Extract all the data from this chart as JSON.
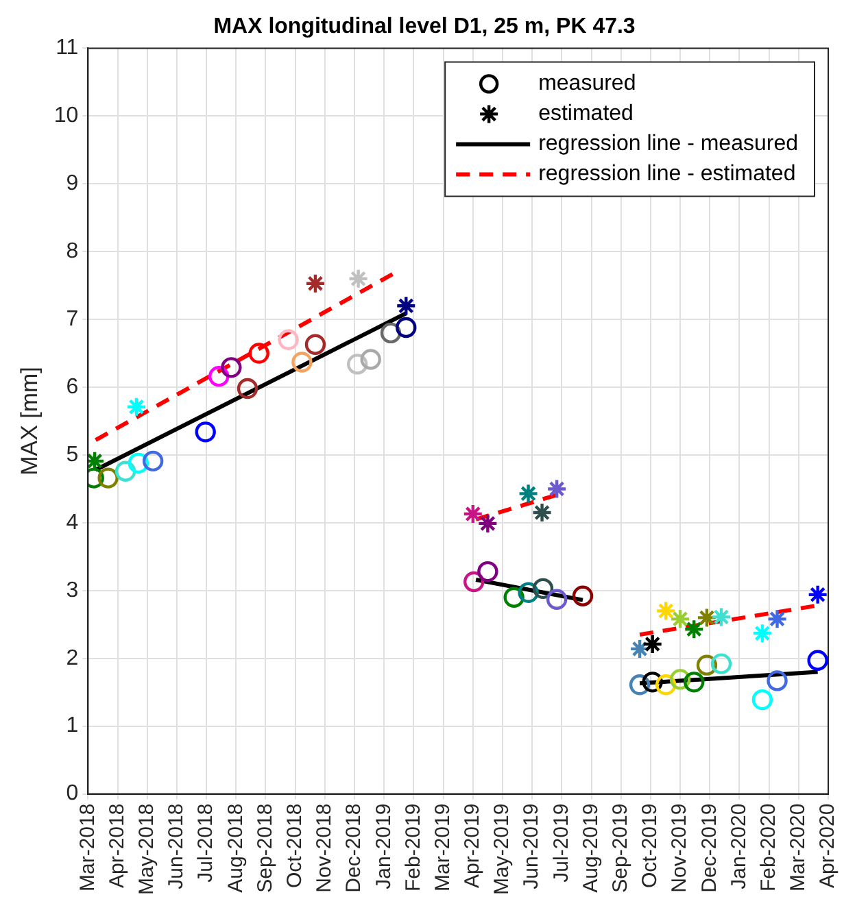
{
  "chart_data": {
    "type": "scatter",
    "title": "MAX longitudinal level D1, 25 m, PK 47.3",
    "ylabel": "MAX [mm]",
    "ylim": [
      0,
      11
    ],
    "yticks": [
      0,
      1,
      2,
      3,
      4,
      5,
      6,
      7,
      8,
      9,
      10,
      11
    ],
    "xlim": [
      "2018-03",
      "2020-04"
    ],
    "xticks": [
      {
        "value": "2018-03",
        "label": "Mar-2018"
      },
      {
        "value": "2018-04",
        "label": "Apr-2018"
      },
      {
        "value": "2018-05",
        "label": "May-2018"
      },
      {
        "value": "2018-06",
        "label": "Jun-2018"
      },
      {
        "value": "2018-07",
        "label": "Jul-2018"
      },
      {
        "value": "2018-08",
        "label": "Aug-2018"
      },
      {
        "value": "2018-09",
        "label": "Sep-2018"
      },
      {
        "value": "2018-10",
        "label": "Oct-2018"
      },
      {
        "value": "2018-11",
        "label": "Nov-2018"
      },
      {
        "value": "2018-12",
        "label": "Dec-2018"
      },
      {
        "value": "2019-01",
        "label": "Jan-2019"
      },
      {
        "value": "2019-02",
        "label": "Feb-2019"
      },
      {
        "value": "2019-03",
        "label": "Mar-2019"
      },
      {
        "value": "2019-04",
        "label": "Apr-2019"
      },
      {
        "value": "2019-05",
        "label": "May-2019"
      },
      {
        "value": "2019-06",
        "label": "Jun-2019"
      },
      {
        "value": "2019-07",
        "label": "Jul-2019"
      },
      {
        "value": "2019-08",
        "label": "Aug-2019"
      },
      {
        "value": "2019-09",
        "label": "Sep-2019"
      },
      {
        "value": "2019-10",
        "label": "Oct-2019"
      },
      {
        "value": "2019-11",
        "label": "Nov-2019"
      },
      {
        "value": "2019-12",
        "label": "Dec-2019"
      },
      {
        "value": "2020-01",
        "label": "Jan-2020"
      },
      {
        "value": "2020-02",
        "label": "Feb-2020"
      },
      {
        "value": "2020-03",
        "label": "Mar-2020"
      },
      {
        "value": "2020-04",
        "label": "Apr-2020"
      }
    ],
    "grid": true,
    "legend": "top right",
    "series": [
      {
        "name": "measured",
        "marker": "circle",
        "color": "#000000",
        "x": [
          "2018-03-07",
          "2018-03-22",
          "2018-04-09",
          "2018-04-22",
          "2018-05-07",
          "2018-06-30",
          "2018-07-14",
          "2018-07-27",
          "2018-08-13",
          "2018-08-25",
          "2018-09-24",
          "2018-10-08",
          "2018-10-22",
          "2018-12-04",
          "2018-12-18",
          "2019-01-08",
          "2019-01-24",
          "2019-04-02",
          "2019-04-16",
          "2019-05-13",
          "2019-05-28",
          "2019-06-12",
          "2019-06-26",
          "2019-07-23",
          "2019-09-20",
          "2019-10-03",
          "2019-10-17",
          "2019-11-01",
          "2019-11-15",
          "2019-11-28",
          "2019-12-13",
          "2020-01-25",
          "2020-02-09",
          "2020-03-21"
        ],
        "values": [
          4.66,
          4.66,
          4.76,
          4.88,
          4.91,
          5.34,
          6.16,
          6.29,
          5.98,
          6.5,
          6.7,
          6.37,
          6.63,
          6.34,
          6.41,
          6.8,
          6.88,
          3.13,
          3.28,
          2.9,
          2.97,
          3.03,
          2.87,
          2.92,
          1.61,
          1.65,
          1.61,
          1.69,
          1.65,
          1.9,
          1.92,
          1.39,
          1.67,
          1.97
        ],
        "colors": [
          "#008000",
          "#808000",
          "#40e0d0",
          "#00ffff",
          "#4169e1",
          "#0000ff",
          "#ff00ff",
          "#800080",
          "#a52a2a",
          "#ff0000",
          "#ffb6c1",
          "#f4a460",
          "#a52a2a",
          "#c0c0c0",
          "#a9a9a9",
          "#696969",
          "#000080",
          "#c71585",
          "#800080",
          "#008000",
          "#008080",
          "#2f4f4f",
          "#6a5acd",
          "#8b0000",
          "#4682b4",
          "#000000",
          "#ffd700",
          "#9acd32",
          "#008000",
          "#808000",
          "#40e0d0",
          "#00ffff",
          "#4169e1",
          "#0000ff"
        ]
      },
      {
        "name": "estimated",
        "marker": "cross",
        "color": "#000000",
        "x": [
          "2018-03-08",
          "2018-04-20",
          "2018-10-22",
          "2018-12-05",
          "2019-01-24",
          "2019-04-01",
          "2019-04-16",
          "2019-05-28",
          "2019-06-11",
          "2019-06-26",
          "2019-09-20",
          "2019-10-03",
          "2019-10-17",
          "2019-11-01",
          "2019-11-15",
          "2019-11-28",
          "2019-12-13",
          "2020-01-25",
          "2020-02-09",
          "2020-03-21"
        ],
        "values": [
          4.91,
          5.71,
          7.53,
          7.6,
          7.2,
          4.13,
          3.99,
          4.43,
          4.15,
          4.5,
          2.14,
          2.21,
          2.7,
          2.58,
          2.43,
          2.6,
          2.61,
          2.37,
          2.58,
          2.94
        ],
        "colors": [
          "#008000",
          "#00ffff",
          "#a52a2a",
          "#c0c0c0",
          "#000080",
          "#c71585",
          "#800080",
          "#008080",
          "#2f4f4f",
          "#6a5acd",
          "#4682b4",
          "#000000",
          "#ffd700",
          "#9acd32",
          "#008000",
          "#808000",
          "#40e0d0",
          "#00ffff",
          "#4169e1",
          "#0000ff"
        ]
      },
      {
        "name": "regression line - measured",
        "type": "line",
        "line_style": "solid",
        "color": "#000000",
        "x": [
          "2018-03-09",
          "2019-01-24"
        ],
        "values": [
          4.78,
          7.09
        ]
      },
      {
        "name": "regression line - estimated",
        "type": "line",
        "line_style": "dashed",
        "color": "#ff0000",
        "x": [
          "2018-03-09",
          "2019-01-14"
        ],
        "values": [
          5.22,
          7.7
        ]
      },
      {
        "type": "line",
        "line_style": "solid",
        "color": "#000000",
        "x": [
          "2019-04-04",
          "2019-07-23"
        ],
        "values": [
          3.16,
          2.86
        ]
      },
      {
        "type": "line",
        "line_style": "dashed",
        "color": "#ff0000",
        "x": [
          "2019-04-04",
          "2019-06-26"
        ],
        "values": [
          4.05,
          4.41
        ]
      },
      {
        "type": "line",
        "line_style": "solid",
        "color": "#000000",
        "x": [
          "2019-09-20",
          "2020-03-21"
        ],
        "values": [
          1.63,
          1.8
        ]
      },
      {
        "type": "line",
        "line_style": "dashed",
        "color": "#ff0000",
        "x": [
          "2019-09-20",
          "2020-03-21"
        ],
        "values": [
          2.35,
          2.78
        ]
      }
    ]
  }
}
